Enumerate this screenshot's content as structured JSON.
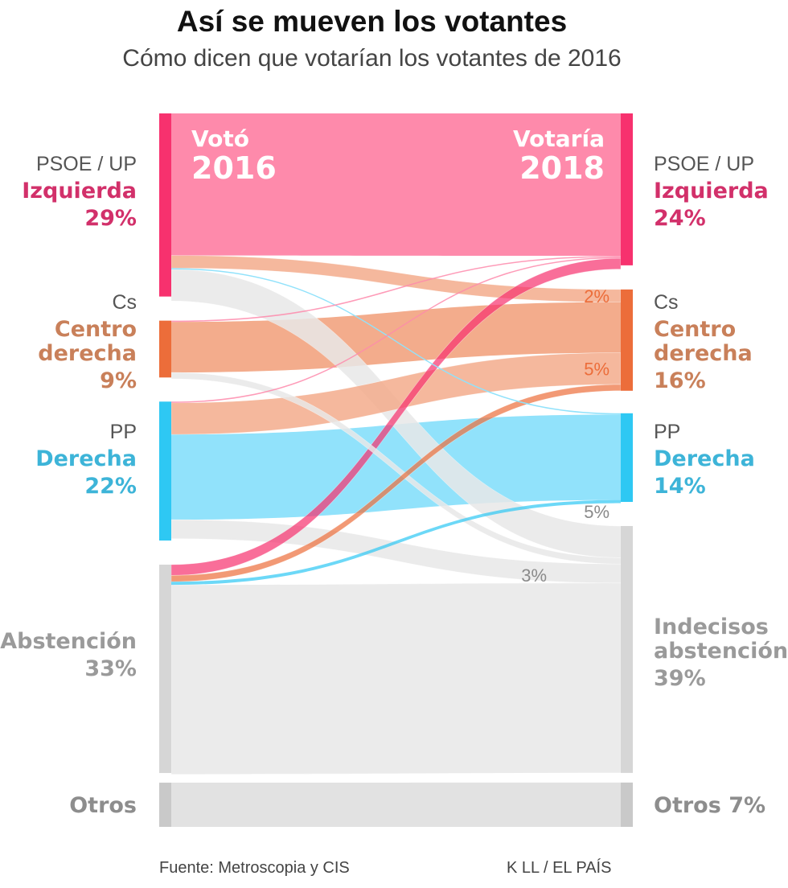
{
  "title": "Así se mueven los votantes",
  "subtitle": "Cómo dicen que votarían los votantes de 2016",
  "source": "Fuente: Metroscopia y CIS",
  "credit": "K LL / EL PAÍS",
  "colors": {
    "izquierda_bar": "#f7316e",
    "izquierda_flow": "#fe8aab",
    "izquierda_label": "#d2306a",
    "centro_bar": "#ec6d3a",
    "centro_flow": "#f3ac8c",
    "centro_label": "#c9805a",
    "derecha_bar": "#2ec8f3",
    "derecha_flow": "#91e2fb",
    "derecha_label": "#3db4d8",
    "gris_bar": "#d6d6d6",
    "gris_flow": "#e8e8e8",
    "gris_label": "#9a9a9a",
    "otros_bar": "#c9c9c9",
    "otros_flow": "#e2e2e2",
    "otros_label": "#8d8d8d"
  },
  "chart_data": {
    "type": "sankey",
    "left_header": {
      "line1": "Votó",
      "line2": "2016"
    },
    "right_header": {
      "line1": "Votaría",
      "line2": "2018"
    },
    "left_nodes": [
      {
        "id": "izq",
        "party": "PSOE / UP",
        "name": "Izquierda",
        "pct": "29%",
        "value": 29
      },
      {
        "id": "cen",
        "party": "Cs",
        "name_lines": [
          "Centro",
          "derecha"
        ],
        "pct": "9%",
        "value": 9
      },
      {
        "id": "der",
        "party": "PP",
        "name": "Derecha",
        "pct": "22%",
        "value": 22
      },
      {
        "id": "abs",
        "name": "Abstención",
        "pct": "33%",
        "value": 33
      },
      {
        "id": "otr",
        "name": "Otros",
        "value": 7
      }
    ],
    "right_nodes": [
      {
        "id": "izq",
        "party": "PSOE / UP",
        "name": "Izquierda",
        "pct": "24%",
        "value": 24
      },
      {
        "id": "cen",
        "party": "Cs",
        "name_lines": [
          "Centro",
          "derecha"
        ],
        "pct": "16%",
        "value": 16
      },
      {
        "id": "der",
        "party": "PP",
        "name": "Derecha",
        "pct": "14%",
        "value": 14
      },
      {
        "id": "ind",
        "name_lines": [
          "Indecisos",
          "abstención"
        ],
        "pct": "39%",
        "value": 39
      },
      {
        "id": "otr",
        "name": "Otros 7%",
        "value": 7
      }
    ],
    "flows": [
      {
        "from": "izq",
        "to": "izq",
        "value": 22.5
      },
      {
        "from": "izq",
        "to": "cen",
        "value": 2,
        "label": "2%"
      },
      {
        "from": "izq",
        "to": "der",
        "value": 0.2
      },
      {
        "from": "izq",
        "to": "ind",
        "value": 5,
        "label": "5%"
      },
      {
        "from": "cen",
        "to": "izq",
        "value": 0.2
      },
      {
        "from": "cen",
        "to": "cen",
        "value": 8
      },
      {
        "from": "cen",
        "to": "ind",
        "value": 1
      },
      {
        "from": "der",
        "to": "izq",
        "value": 0.2
      },
      {
        "from": "der",
        "to": "cen",
        "value": 5,
        "label": "5%"
      },
      {
        "from": "der",
        "to": "der",
        "value": 13.5
      },
      {
        "from": "der",
        "to": "ind",
        "value": 3,
        "label": "3%"
      },
      {
        "from": "abs",
        "to": "izq",
        "value": 1.7
      },
      {
        "from": "abs",
        "to": "cen",
        "value": 1
      },
      {
        "from": "abs",
        "to": "der",
        "value": 0.5
      },
      {
        "from": "abs",
        "to": "ind",
        "value": 30
      },
      {
        "from": "otr",
        "to": "otr",
        "value": 7
      }
    ]
  }
}
